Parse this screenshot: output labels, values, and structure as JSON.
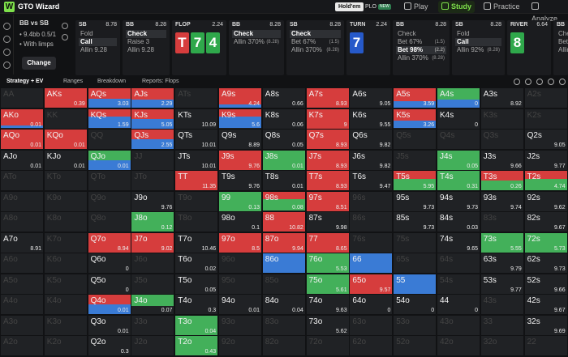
{
  "app": {
    "name": "GTO Wizard",
    "logo": "W"
  },
  "topnav": {
    "modes": [
      {
        "label": "Hold'em",
        "active": true
      },
      {
        "label": "PLO",
        "badge": "NEW"
      }
    ],
    "items": [
      {
        "label": "Play",
        "icon": "play-icon"
      },
      {
        "label": "Study",
        "icon": "study-icon",
        "active": true
      },
      {
        "label": "Practice",
        "icon": "practice-icon"
      },
      {
        "label": "Analyze",
        "icon": "analyze-icon"
      }
    ]
  },
  "spot": {
    "title": "BB vs SB",
    "stack": "• 9.4bb 0.5/1",
    "limps": "• With limps",
    "change_label": "Change"
  },
  "actions_bar": [
    {
      "title": "SB",
      "value": "8.78",
      "actions": [
        {
          "label": "Fold"
        },
        {
          "label": "Call",
          "selected": true
        },
        {
          "label": "Allin 9.28"
        }
      ]
    },
    {
      "title": "BB",
      "value": "8.28",
      "actions": [
        {
          "label": "Check",
          "selected": true
        },
        {
          "label": "Raise 3"
        },
        {
          "label": "Allin 9.28"
        }
      ]
    },
    {
      "title": "FLOP",
      "value": "2.24",
      "board": [
        {
          "rank": "T",
          "color": "red"
        },
        {
          "rank": "7",
          "color": "green"
        },
        {
          "rank": "4",
          "color": "green"
        }
      ]
    },
    {
      "title": "BB",
      "value": "8.28",
      "actions": [
        {
          "label": "Check",
          "selected": true
        },
        {
          "label": "Allin 370%",
          "sub": "(8.28)"
        }
      ]
    },
    {
      "title": "SB",
      "value": "8.28",
      "actions": [
        {
          "label": "Check",
          "selected": true
        },
        {
          "label": "Bet 67%",
          "sub": "(1.5)"
        },
        {
          "label": "Allin 370%",
          "sub": "(8.28)"
        }
      ]
    },
    {
      "title": "TURN",
      "value": "2.24",
      "board": [
        {
          "rank": "7",
          "color": "blue"
        }
      ]
    },
    {
      "title": "BB",
      "value": "8.28",
      "actions": [
        {
          "label": "Check"
        },
        {
          "label": "Bet 67%",
          "sub": "(1.5)"
        },
        {
          "label": "Bet 98%",
          "sub": "(2.2)",
          "selected": true
        },
        {
          "label": "Allin 370%",
          "sub": "(8.28)"
        }
      ]
    },
    {
      "title": "SB",
      "value": "8.28",
      "actions": [
        {
          "label": "Fold"
        },
        {
          "label": "Call",
          "selected": true
        },
        {
          "label": "Allin 92%",
          "sub": "(8.28)"
        }
      ]
    },
    {
      "title": "RIVER",
      "value": "6.64",
      "board": [
        {
          "rank": "8",
          "color": "green"
        }
      ]
    },
    {
      "title": "BB",
      "value": "",
      "actions": [
        {
          "label": "Check"
        },
        {
          "label": "Bet"
        },
        {
          "label": "Allin"
        }
      ]
    }
  ],
  "tabs": [
    "Strategy + EV",
    "Ranges",
    "Breakdown",
    "Reports: Flops"
  ],
  "colors": {
    "red": "#d63d3d",
    "green": "#43b05a",
    "blue": "#3a7bd5",
    "cell": "#202225",
    "fold": "#2a3f5f"
  },
  "grid": [
    [
      "AA||",
      "AKs|0.39|r1",
      "AQs|3.03|r0.55,b0.45",
      "AJs|2.29|r0.6,b0.4",
      "ATs||",
      "A9s|4.24|r0.85,b0.15",
      "A8s|0.66|",
      "A7s|8.93|r1",
      "A6s|9.05|",
      "A5s|3.59|r0.65,b0.35",
      "A4s|0|g0.6,b0.4",
      "A3s|8.92|",
      "A2s||"
    ],
    [
      "AKo|0.01|r0.85,b0.15",
      "KK||",
      "KQs|1.59|r0.4,b0.6",
      "KJs|5.05|r0.5,b0.5",
      "KTs|10.09|",
      "K9s|5.6|r0.4,b0.6",
      "K8s|0.06|",
      "K7s|9|r1",
      "K6s|9.55|",
      "K5s|3.26|r0.6,b0.4",
      "K4s|0|",
      "K3s||",
      "K2s||"
    ],
    [
      "AQo|0.01|r1",
      "KQo|0.01|r1",
      "QQ||",
      "QJs|2.55|r0.5,b0.5",
      "QTs|10.01|",
      "Q9s|8.89|",
      "Q8s|0.05|",
      "Q7s|8.93|r1",
      "Q6s|9.82|",
      "Q5s||",
      "Q4s||",
      "Q3s||",
      "Q2s|9.05|"
    ],
    [
      "AJo|0.01|",
      "KJo|0.01|",
      "QJo|0.01|g0.5,b0.5",
      "JJ||",
      "JTs|10.01|",
      "J9s|9.76|r1",
      "J8s|0.01|g1",
      "J7s|8.93|r1",
      "J6s|9.82|",
      "J5s||",
      "J4s|0.05|g1",
      "J3s|9.66|",
      "J2s|9.77|"
    ],
    [
      "ATo||",
      "KTo||",
      "QTo||",
      "JTo||",
      "TT|11.35|r1",
      "T9s|9.76|",
      "T8s|0.01|",
      "T7s|8.93|r1",
      "T6s|9.47|",
      "T5s|5.95|r0.4,g0.6",
      "T4s|0.31|g1",
      "T3s|0.26|r0.5,g0.5",
      "T2s|4.74|r0.4,g0.6"
    ],
    [
      "A9o||",
      "K9o||",
      "Q9o||",
      "J9o|9.76|",
      "T9o||",
      "99|0.13|g1",
      "98s|0.08|r0.4,g0.6",
      "97s|8.51|r1",
      "96s||",
      "95s|9.73|",
      "94s|9.73|",
      "93s|9.74|",
      "92s|9.62|"
    ],
    [
      "A8o||",
      "K8o||",
      "Q8o||",
      "J8o|0.12|g1",
      "T8o||",
      "98o|0.1|",
      "88|10.82|r1",
      "87s|9.98|",
      "86s||",
      "85s|9.73|",
      "84s|0.03|",
      "83s||",
      "82s|9.67|"
    ],
    [
      "A7o|8.91|",
      "K7o||",
      "Q7o|8.94|r1",
      "J7o|9.02|r1",
      "T7o|10.46|",
      "97o|8.5|r1",
      "87o|9.94|r1",
      "77|8.65|r1",
      "76s||",
      "75s||",
      "74s|9.65|",
      "73s|5.55|g1",
      "72s|5.73|g1"
    ],
    [
      "A6o||",
      "K6o||",
      "Q6o|0|",
      "J6o||",
      "T6o|0.02|",
      "96o||",
      "86o||b1",
      "76o|5.53|g1",
      "66||b1",
      "65s||",
      "64s||",
      "63s|9.79|",
      "62s|9.73|"
    ],
    [
      "A5o||",
      "K5o||",
      "Q5o|0|",
      "J5o||",
      "T5o|0.05|",
      "95o||",
      "85o||",
      "75o|5.61|g1",
      "65o|9.57|r1",
      "55||b1",
      "54s||",
      "53s|9.77|",
      "52s|9.66|"
    ],
    [
      "A4o||",
      "K4o||",
      "Q4o|0.01|r0.5,b0.5",
      "J4o|0.07|g0.6",
      "T4o|0.3|",
      "94o|0.01|",
      "84o|0.04|",
      "74o|9.63|",
      "64o|0|",
      "54o|0|",
      "44|0|",
      "43s||",
      "42s|9.67|"
    ],
    [
      "A3o||",
      "K3o||",
      "Q3o|0.01|",
      "J3o||",
      "T3o|0.04|g1",
      "93o||",
      "83o||",
      "73o|5.62|",
      "63o||",
      "53o||",
      "43o||",
      "33||",
      "32s|9.69|"
    ],
    [
      "A2o||",
      "K2o||",
      "Q2o|0.3|",
      "J2o||",
      "T2o|0.43|g1",
      "92o||",
      "82o||",
      "72o||",
      "62o||",
      "52o||",
      "42o||",
      "32o||",
      "22||"
    ]
  ]
}
